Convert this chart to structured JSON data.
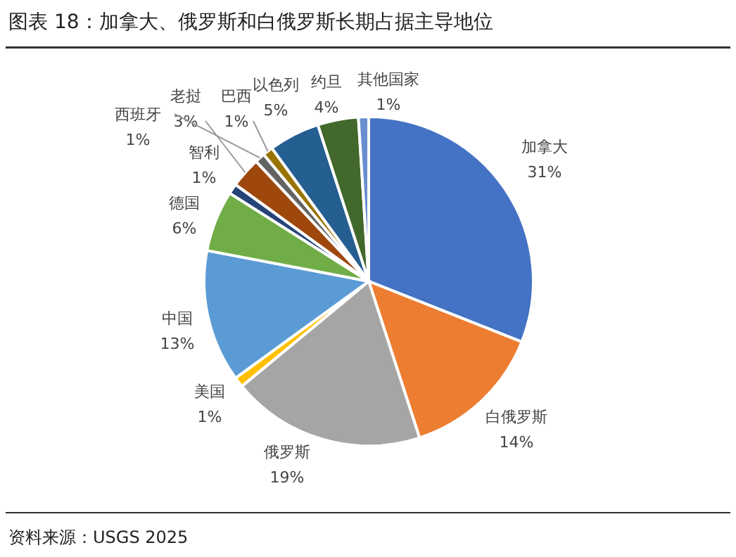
{
  "chart_data": {
    "type": "pie",
    "title": "图表 18：加拿大、俄罗斯和白俄罗斯长期占据主导地位",
    "categories": [
      "加拿大",
      "白俄罗斯",
      "俄罗斯",
      "美国",
      "中国",
      "德国",
      "智利",
      "老挝",
      "西班牙",
      "巴西",
      "以色列",
      "约旦",
      "其他国家"
    ],
    "values": [
      31,
      14,
      19,
      1,
      13,
      6,
      1,
      3,
      1,
      1,
      5,
      4,
      1
    ],
    "colors": [
      "#4472c4",
      "#ed7d31",
      "#a5a5a5",
      "#ffc000",
      "#5b9bd5",
      "#70ad47",
      "#264478",
      "#9e480e",
      "#636363",
      "#997300",
      "#255e91",
      "#43682b",
      "#698ed0"
    ],
    "value_labels": [
      "31%",
      "14%",
      "19%",
      "1%",
      "13%",
      "6%",
      "1%",
      "3%",
      "1%",
      "1%",
      "5%",
      "4%",
      "1%"
    ],
    "annotations": [
      "资料来源：USGS 2025"
    ]
  }
}
